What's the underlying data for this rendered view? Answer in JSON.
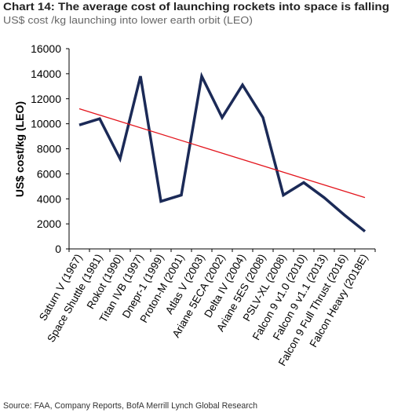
{
  "chart_data": {
    "type": "line",
    "title": "Chart 14: The average cost of launching rockets into space is falling",
    "subtitle": "US$ cost /kg launching into lower earth orbit (LEO)",
    "source": "Source: FAA, Company Reports, BofA Merrill Lynch Global Research",
    "y_label": "US$ cost/kg (LEO)",
    "categories": [
      "Saturn V (1967)",
      "Space Shuttle (1981)",
      "Rokot (1990)",
      "Titan IVB (1997)",
      "Dnepr-1 (1999)",
      "Proton-M (2001)",
      "Atlas V (2003)",
      "Ariane 5ECA (2002)",
      "Delta IV (2004)",
      "Ariane 5ES (2008)",
      "PSLV-XL (2008)",
      "Falcon 9 v1.0 (2010)",
      "Falcon 9 v1.1 (2013)",
      "Falcon 9 Full Thrust (2016)",
      "Falcon Heavy (2018E)"
    ],
    "series": [
      {
        "color": "#1b2a57",
        "values": [
          9900,
          10400,
          7200,
          13800,
          3800,
          4300,
          13800,
          10500,
          13100,
          10500,
          4300,
          5300,
          4100,
          2700,
          1400
        ]
      }
    ],
    "trendline": {
      "color": "#e3141c",
      "values": [
        11200,
        4100
      ]
    },
    "ylim": [
      0,
      16000
    ],
    "yticks": [
      0,
      2000,
      4000,
      6000,
      8000,
      10000,
      12000,
      14000,
      16000
    ]
  }
}
